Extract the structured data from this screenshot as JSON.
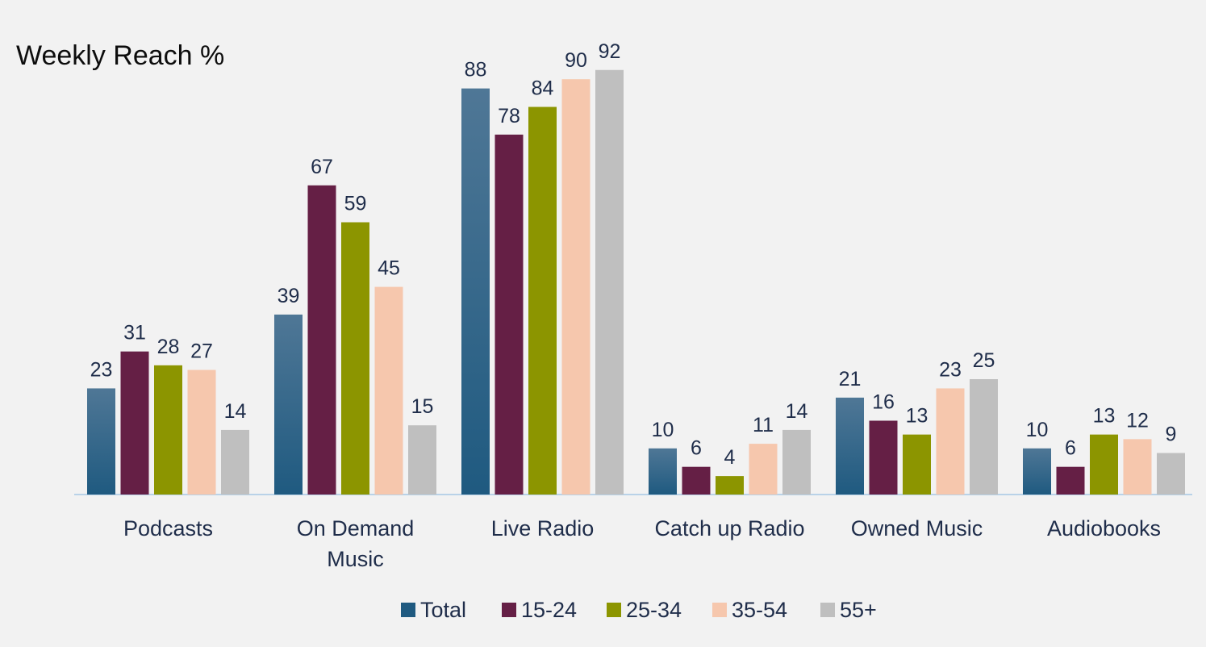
{
  "chart_data": {
    "type": "bar",
    "title": "Weekly Reach %",
    "categories": [
      [
        "Podcasts"
      ],
      [
        "On Demand",
        "Music"
      ],
      [
        "Live Radio"
      ],
      [
        "Catch up Radio"
      ],
      [
        "Owned Music"
      ],
      [
        "Audiobooks"
      ]
    ],
    "series": [
      {
        "name": "Total",
        "color": "#1f5a80",
        "values": [
          23,
          39,
          88,
          10,
          21,
          10
        ]
      },
      {
        "name": "15-24",
        "color": "#651f45",
        "values": [
          31,
          67,
          78,
          6,
          16,
          6
        ]
      },
      {
        "name": "25-34",
        "color": "#8c9500",
        "values": [
          28,
          59,
          84,
          4,
          13,
          13
        ]
      },
      {
        "name": "35-54",
        "color": "#f6c7ad",
        "values": [
          27,
          45,
          90,
          11,
          23,
          12
        ]
      },
      {
        "name": "55+",
        "color": "#bfbfbf",
        "values": [
          14,
          15,
          92,
          14,
          25,
          9
        ]
      }
    ],
    "ylim": [
      0,
      100
    ],
    "grid": false,
    "legend": "bottom",
    "data_labels": true
  }
}
